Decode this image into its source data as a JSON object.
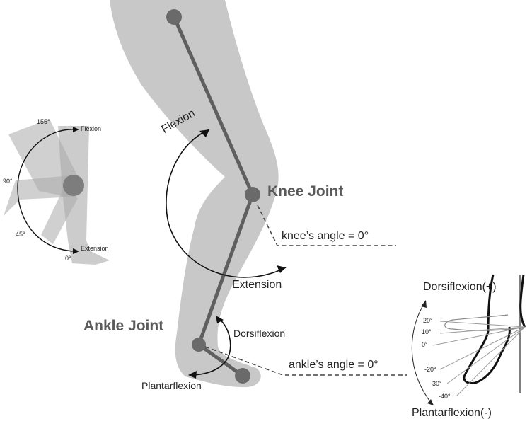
{
  "colors": {
    "limb_fill": "#c8c8c8",
    "bone_line": "#5f5f5f",
    "joint_dot": "#6a6a6a",
    "text": "#222222",
    "joint_label": "#5a5a5a",
    "background": "#ffffff"
  },
  "joints": {
    "knee": "Knee Joint",
    "ankle": "Ankle Joint"
  },
  "knee_motion": {
    "flexion": "Flexion",
    "extension": "Extension",
    "angle_zero": "knee’s angle = 0°"
  },
  "ankle_motion": {
    "dorsiflexion": "Dorsiflexion",
    "plantarflexion": "Plantarflexion",
    "angle_zero": "ankle’s angle = 0°"
  },
  "knee_range_inset": {
    "flexion": "Flexion",
    "extension": "Extension",
    "angles": [
      "155°",
      "90°",
      "45°",
      "0°"
    ]
  },
  "ankle_range_inset": {
    "dorsiflexion": "Dorsiflexion(+)",
    "plantarflexion": "Plantarflexion(-)",
    "angles": [
      "20°",
      "10°",
      "0°",
      "-20°",
      "-30°",
      "-40°"
    ]
  }
}
